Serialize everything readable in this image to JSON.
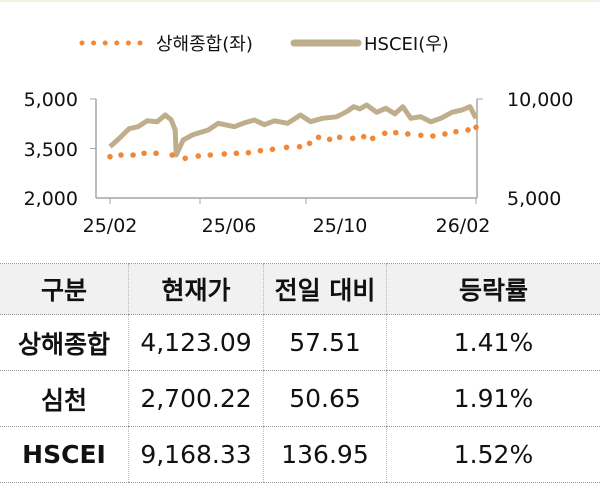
{
  "chart_data": {
    "type": "line",
    "legend": "top",
    "grid": false,
    "x_ticks": [
      "25/02",
      "25/06",
      "25/10",
      "26/02"
    ],
    "x_range": [
      "2025-02-01",
      "2026-02-01"
    ],
    "y_left": {
      "ticks": [
        "5,000",
        "3,500",
        "2,000"
      ],
      "range": [
        2000,
        5000
      ]
    },
    "y_right": {
      "ticks": [
        "10,000",
        "5,000"
      ],
      "range": [
        5000,
        10000
      ]
    },
    "colors": {
      "shanghai": "#f0883a",
      "hscei": "#bfae8c"
    },
    "series": [
      {
        "name": "상해종합(좌)",
        "axis": "left",
        "style": "dotted",
        "points": [
          [
            "2025-02-01",
            3252
          ],
          [
            "2025-02-12",
            3303
          ],
          [
            "2025-02-24",
            3303
          ],
          [
            "2025-03-07",
            3355
          ],
          [
            "2025-03-19",
            3355
          ],
          [
            "2025-04-04",
            3303
          ],
          [
            "2025-04-17",
            3203
          ],
          [
            "2025-04-30",
            3273
          ],
          [
            "2025-05-12",
            3303
          ],
          [
            "2025-05-26",
            3334
          ],
          [
            "2025-06-07",
            3355
          ],
          [
            "2025-06-19",
            3373
          ],
          [
            "2025-07-01",
            3434
          ],
          [
            "2025-07-13",
            3475
          ],
          [
            "2025-07-27",
            3535
          ],
          [
            "2025-08-09",
            3555
          ],
          [
            "2025-08-19",
            3657
          ],
          [
            "2025-08-28",
            3839
          ],
          [
            "2025-09-08",
            3778
          ],
          [
            "2025-09-18",
            3839
          ],
          [
            "2025-10-01",
            3808
          ],
          [
            "2025-10-12",
            3858
          ],
          [
            "2025-10-21",
            3808
          ],
          [
            "2025-11-02",
            3960
          ],
          [
            "2025-11-13",
            3980
          ],
          [
            "2025-11-25",
            3940
          ],
          [
            "2025-12-08",
            3900
          ],
          [
            "2025-12-20",
            3879
          ],
          [
            "2026-01-01",
            3940
          ],
          [
            "2026-01-12",
            4010
          ],
          [
            "2026-01-24",
            4061
          ],
          [
            "2026-02-01",
            4142
          ]
        ]
      },
      {
        "name": "HSCEI(우)",
        "axis": "right",
        "style": "solid",
        "points": [
          [
            "2025-02-01",
            7590
          ],
          [
            "2025-02-10",
            8000
          ],
          [
            "2025-02-20",
            8500
          ],
          [
            "2025-03-01",
            8600
          ],
          [
            "2025-03-10",
            8900
          ],
          [
            "2025-03-20",
            8850
          ],
          [
            "2025-03-28",
            9192
          ],
          [
            "2025-04-03",
            8950
          ],
          [
            "2025-04-07",
            8434
          ],
          [
            "2025-04-08",
            7172
          ],
          [
            "2025-04-15",
            7930
          ],
          [
            "2025-04-25",
            8200
          ],
          [
            "2025-05-10",
            8434
          ],
          [
            "2025-05-20",
            8771
          ],
          [
            "2025-06-05",
            8600
          ],
          [
            "2025-06-15",
            8800
          ],
          [
            "2025-06-25",
            8940
          ],
          [
            "2025-07-05",
            8700
          ],
          [
            "2025-07-15",
            8900
          ],
          [
            "2025-07-28",
            8771
          ],
          [
            "2025-08-10",
            9192
          ],
          [
            "2025-08-20",
            8855
          ],
          [
            "2025-09-01",
            9025
          ],
          [
            "2025-09-15",
            9100
          ],
          [
            "2025-09-25",
            9360
          ],
          [
            "2025-10-02",
            9613
          ],
          [
            "2025-10-08",
            9500
          ],
          [
            "2025-10-15",
            9697
          ],
          [
            "2025-10-25",
            9327
          ],
          [
            "2025-11-03",
            9529
          ],
          [
            "2025-11-12",
            9250
          ],
          [
            "2025-11-20",
            9613
          ],
          [
            "2025-11-28",
            9025
          ],
          [
            "2025-12-08",
            9108
          ],
          [
            "2025-12-18",
            8855
          ],
          [
            "2025-12-28",
            9025
          ],
          [
            "2026-01-08",
            9327
          ],
          [
            "2026-01-18",
            9444
          ],
          [
            "2026-01-26",
            9613
          ],
          [
            "2026-02-01",
            9025
          ]
        ]
      }
    ]
  },
  "table": {
    "headers": [
      "구분",
      "현재가",
      "전일 대비",
      "등락률"
    ],
    "rows": [
      [
        "상해종합",
        "4,123.09",
        "57.51",
        "1.41%"
      ],
      [
        "심천",
        "2,700.22",
        "50.65",
        "1.91%"
      ],
      [
        "HSCEI",
        "9,168.33",
        "136.95",
        "1.52%"
      ]
    ]
  }
}
